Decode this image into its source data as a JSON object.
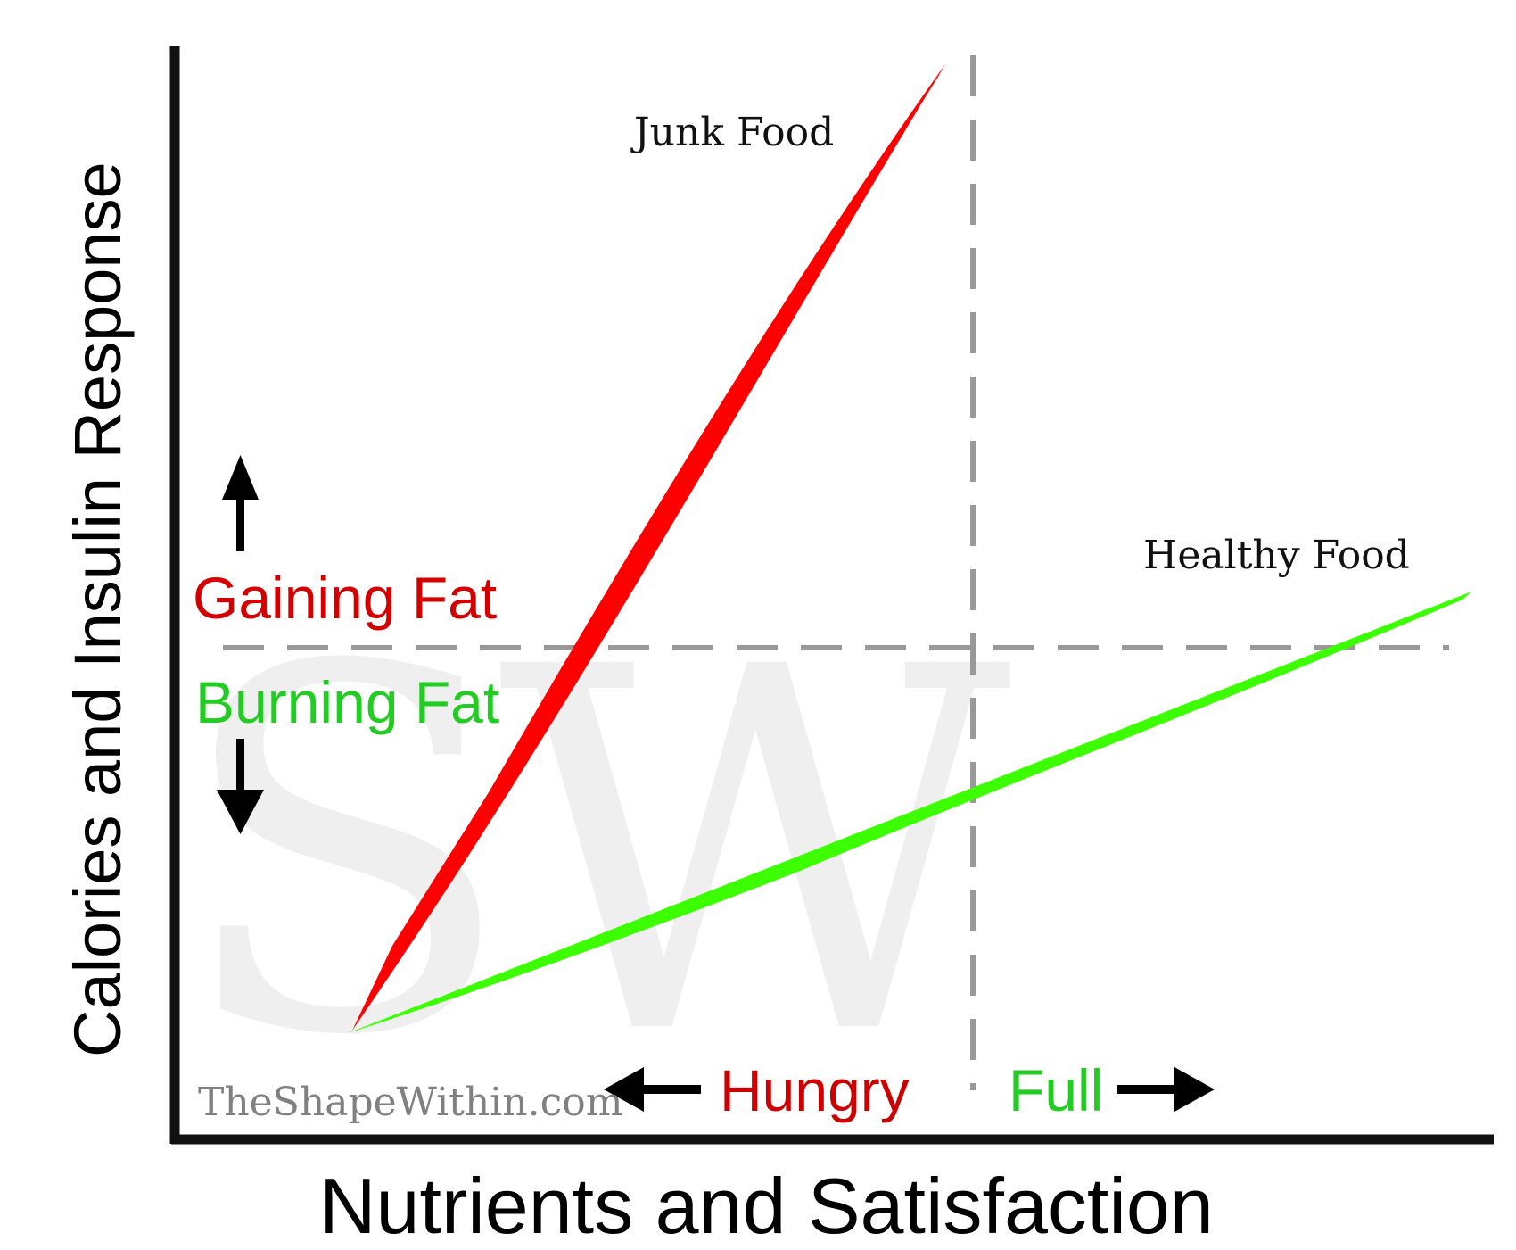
{
  "chart": {
    "x_axis_label": "Nutrients and Satisfaction",
    "y_axis_label": "Calories and Insulin Response",
    "series": [
      {
        "id": "junk",
        "label": "Junk Food",
        "color": "#ff0000"
      },
      {
        "id": "healthy",
        "label": "Healthy Food",
        "color": "#3cff00"
      }
    ],
    "zones": {
      "upper_label": "Gaining Fat",
      "upper_color": "#d40000",
      "lower_label": "Burning Fat",
      "lower_color": "#22cc22"
    },
    "satiety": {
      "left_label": "Hungry",
      "left_color": "#cc0000",
      "right_label": "Full",
      "right_color": "#22cc22"
    },
    "watermark": {
      "site": "TheShapeWithin.com",
      "monogram": "SW"
    },
    "colors": {
      "axis": "#111111",
      "divider": "#999999",
      "arrow": "#000000",
      "watermark_text": "#808080",
      "monogram": "#efefef"
    }
  }
}
